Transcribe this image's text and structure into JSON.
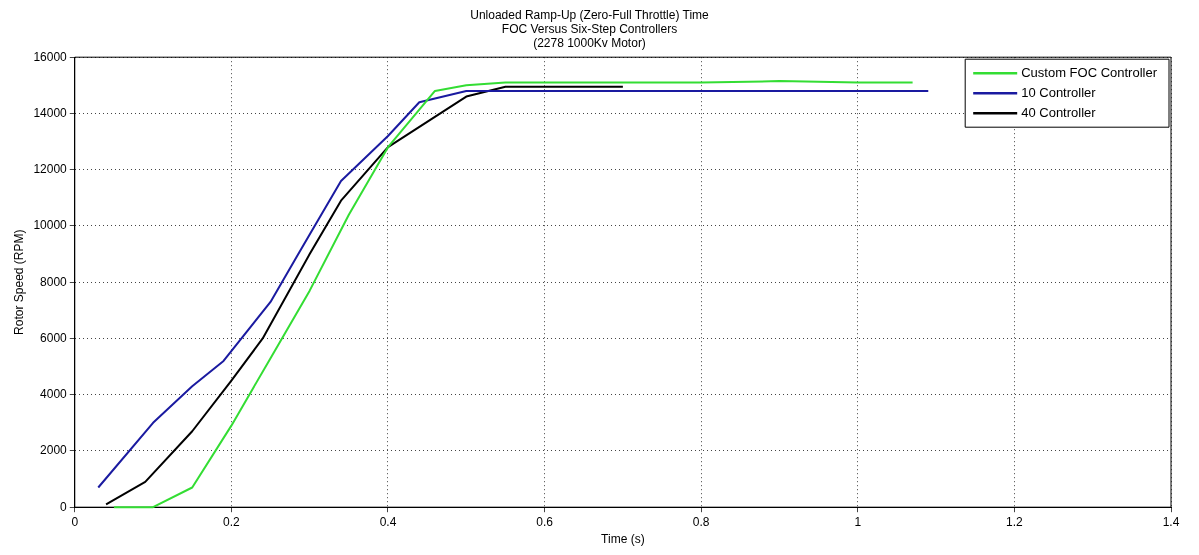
{
  "chart_data": {
    "type": "line",
    "title": "Unloaded Ramp-Up (Zero-Full Throttle) Time\nFOC Versus Six-Step Controllers\n(2278 1000Kv Motor)",
    "xlabel": "Time (s)",
    "ylabel": "Rotor Speed (RPM)",
    "xlim": [
      0,
      1.4
    ],
    "xticks": [
      0,
      0.2,
      0.4,
      0.6,
      0.8,
      1,
      1.2,
      1.4
    ],
    "ylim": [
      0,
      16000
    ],
    "yticks": [
      0,
      2000,
      4000,
      6000,
      8000,
      10000,
      12000,
      14000,
      16000
    ],
    "grid": true,
    "legend": "top right",
    "marker": "none",
    "line_style": "solid",
    "series": [
      {
        "name": "Custom FOC Controller",
        "color": "#33dd33",
        "x": [
          0.05,
          0.1,
          0.15,
          0.2,
          0.25,
          0.3,
          0.35,
          0.4,
          0.46,
          0.5,
          0.55,
          0.6,
          0.7,
          0.8,
          0.9,
          1.0,
          1.07
        ],
        "values": [
          0,
          0,
          700,
          2900,
          5300,
          7700,
          10400,
          12800,
          14800,
          15000,
          15100,
          15100,
          15100,
          15100,
          15150,
          15100,
          15100
        ]
      },
      {
        "name": "10 Controller",
        "color": "#1a1aa0",
        "x": [
          0.03,
          0.1,
          0.15,
          0.19,
          0.25,
          0.3,
          0.34,
          0.4,
          0.44,
          0.5,
          0.6,
          0.7,
          0.8,
          0.9,
          1.0,
          1.09
        ],
        "values": [
          700,
          3000,
          4300,
          5200,
          7300,
          9700,
          11600,
          13200,
          14400,
          14800,
          14800,
          14800,
          14800,
          14800,
          14800,
          14800
        ]
      },
      {
        "name": "40 Controller",
        "color": "#000000",
        "x": [
          0.04,
          0.09,
          0.15,
          0.2,
          0.24,
          0.3,
          0.34,
          0.4,
          0.45,
          0.5,
          0.55,
          0.6,
          0.7
        ],
        "values": [
          100,
          900,
          2700,
          4500,
          6000,
          9000,
          10900,
          12800,
          13700,
          14600,
          14950,
          14950,
          14950
        ]
      }
    ]
  }
}
